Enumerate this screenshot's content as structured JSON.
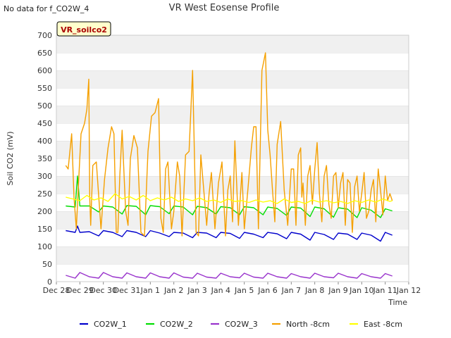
{
  "notice": "No data for f_CO2W_4",
  "chart_data": {
    "type": "line",
    "title": "VR West Eosense Profile",
    "xlabel": "Time",
    "ylabel": "Soil CO2 (mV)",
    "site_label": "VR_soilco2",
    "ylim": [
      0,
      700
    ],
    "yticks": [
      0,
      50,
      100,
      150,
      200,
      250,
      300,
      350,
      400,
      450,
      500,
      550,
      600,
      650,
      700
    ],
    "xlim_days": [
      0,
      15
    ],
    "xticks": [
      "Dec 28",
      "Dec 29",
      "Dec 30",
      "Dec 31",
      "Jan 1",
      "Jan 2",
      "Jan 3",
      "Jan 4",
      "Jan 5",
      "Jan 6",
      "Jan 7",
      "Jan 8",
      "Jan 9",
      "Jan 10",
      "Jan 11",
      "Jan 12"
    ],
    "grid": "horizontal bands",
    "legend_position": "bottom",
    "series": [
      {
        "name": "CO2W_1",
        "color": "#0000cc",
        "x": [
          0.4,
          0.8,
          0.9,
          1.0,
          1.4,
          1.8,
          2.0,
          2.4,
          2.8,
          3.0,
          3.4,
          3.8,
          4.0,
          4.4,
          4.8,
          5.0,
          5.4,
          5.8,
          6.0,
          6.4,
          6.8,
          7.0,
          7.4,
          7.8,
          8.0,
          8.4,
          8.8,
          9.0,
          9.4,
          9.8,
          10.0,
          10.4,
          10.8,
          11.0,
          11.4,
          11.8,
          12.0,
          12.4,
          12.8,
          13.0,
          13.4,
          13.8,
          14.0,
          14.3
        ],
        "y": [
          145,
          140,
          158,
          140,
          142,
          130,
          145,
          140,
          128,
          145,
          140,
          128,
          145,
          138,
          128,
          140,
          138,
          125,
          140,
          138,
          125,
          140,
          137,
          123,
          140,
          135,
          125,
          140,
          136,
          122,
          140,
          135,
          118,
          140,
          134,
          120,
          138,
          135,
          120,
          138,
          132,
          115,
          140,
          132
        ]
      },
      {
        "name": "CO2W_2",
        "color": "#00dd00",
        "x": [
          0.4,
          0.8,
          0.9,
          1.0,
          1.4,
          1.8,
          2.0,
          2.4,
          2.8,
          3.0,
          3.4,
          3.8,
          4.0,
          4.4,
          4.8,
          5.0,
          5.4,
          5.8,
          6.0,
          6.4,
          6.8,
          7.0,
          7.4,
          7.8,
          8.0,
          8.4,
          8.8,
          9.0,
          9.4,
          9.8,
          10.0,
          10.4,
          10.8,
          11.0,
          11.4,
          11.8,
          12.0,
          12.4,
          12.8,
          13.0,
          13.4,
          13.8,
          14.0,
          14.3
        ],
        "y": [
          215,
          212,
          300,
          215,
          215,
          198,
          215,
          212,
          192,
          216,
          214,
          190,
          216,
          213,
          193,
          215,
          212,
          190,
          214,
          210,
          192,
          213,
          210,
          190,
          213,
          210,
          190,
          212,
          208,
          188,
          212,
          209,
          185,
          212,
          207,
          183,
          210,
          206,
          182,
          210,
          203,
          182,
          207,
          201
        ]
      },
      {
        "name": "CO2W_3",
        "color": "#9933cc",
        "x": [
          0.4,
          0.8,
          1.0,
          1.4,
          1.8,
          2.0,
          2.4,
          2.8,
          3.0,
          3.4,
          3.8,
          4.0,
          4.4,
          4.8,
          5.0,
          5.4,
          5.8,
          6.0,
          6.4,
          6.8,
          7.0,
          7.4,
          7.8,
          8.0,
          8.4,
          8.8,
          9.0,
          9.4,
          9.8,
          10.0,
          10.4,
          10.8,
          11.0,
          11.4,
          11.8,
          12.0,
          12.4,
          12.8,
          13.0,
          13.4,
          13.8,
          14.0,
          14.3
        ],
        "y": [
          18,
          10,
          26,
          14,
          10,
          26,
          14,
          10,
          25,
          14,
          10,
          25,
          14,
          10,
          25,
          13,
          10,
          24,
          13,
          10,
          24,
          14,
          11,
          24,
          13,
          10,
          24,
          14,
          10,
          23,
          14,
          10,
          24,
          14,
          11,
          24,
          14,
          10,
          23,
          14,
          10,
          23,
          16
        ]
      },
      {
        "name": "North -8cm",
        "color": "#f5a000",
        "x": [
          0.4,
          0.5,
          0.65,
          0.75,
          0.85,
          0.95,
          1.05,
          1.2,
          1.3,
          1.38,
          1.42,
          1.46,
          1.55,
          1.7,
          1.9,
          2.05,
          2.2,
          2.35,
          2.45,
          2.55,
          2.62,
          2.7,
          2.8,
          2.95,
          3.05,
          3.15,
          3.3,
          3.45,
          3.6,
          3.75,
          3.9,
          4.05,
          4.2,
          4.35,
          4.45,
          4.55,
          4.65,
          4.75,
          4.9,
          5.0,
          5.15,
          5.25,
          5.35,
          5.5,
          5.65,
          5.8,
          5.95,
          6.05,
          6.15,
          6.3,
          6.4,
          6.5,
          6.6,
          6.75,
          6.9,
          7.05,
          7.2,
          7.3,
          7.4,
          7.5,
          7.6,
          7.75,
          7.9,
          8.0,
          8.15,
          8.3,
          8.4,
          8.5,
          8.6,
          8.75,
          8.9,
          9.0,
          9.1,
          9.2,
          9.3,
          9.4,
          9.55,
          9.7,
          9.85,
          10.0,
          10.1,
          10.2,
          10.3,
          10.4,
          10.45,
          10.5,
          10.6,
          10.7,
          10.8,
          10.9,
          11.0,
          11.1,
          11.2,
          11.3,
          11.4,
          11.5,
          11.6,
          11.7,
          11.8,
          11.9,
          12.0,
          12.1,
          12.2,
          12.3,
          12.4,
          12.5,
          12.6,
          12.7,
          12.8,
          12.9,
          13.0,
          13.1,
          13.2,
          13.3,
          13.4,
          13.5,
          13.6,
          13.7,
          13.8,
          13.9,
          14.0,
          14.1,
          14.2,
          14.3
        ],
        "y": [
          330,
          320,
          420,
          240,
          150,
          290,
          420,
          450,
          490,
          575,
          240,
          160,
          330,
          340,
          150,
          290,
          380,
          440,
          420,
          140,
          140,
          300,
          430,
          200,
          160,
          350,
          415,
          380,
          140,
          130,
          370,
          470,
          480,
          520,
          180,
          140,
          320,
          340,
          150,
          200,
          340,
          300,
          130,
          360,
          370,
          600,
          140,
          130,
          360,
          240,
          160,
          250,
          310,
          150,
          280,
          340,
          130,
          260,
          300,
          170,
          400,
          160,
          310,
          150,
          260,
          380,
          440,
          440,
          150,
          600,
          650,
          430,
          360,
          260,
          170,
          390,
          455,
          260,
          160,
          320,
          320,
          160,
          360,
          380,
          240,
          280,
          160,
          300,
          330,
          220,
          320,
          395,
          250,
          170,
          300,
          330,
          220,
          180,
          300,
          310,
          210,
          280,
          310,
          160,
          290,
          280,
          140,
          270,
          300,
          200,
          250,
          310,
          180,
          200,
          260,
          290,
          170,
          320,
          260,
          190,
          300,
          230,
          250,
          230
        ]
      },
      {
        "name": "East -8cm",
        "color": "#ffff00",
        "x": [
          0.4,
          0.7,
          1.0,
          1.3,
          1.6,
          1.9,
          2.2,
          2.5,
          2.8,
          3.1,
          3.4,
          3.7,
          4.0,
          4.3,
          4.6,
          4.9,
          5.2,
          5.5,
          5.8,
          6.1,
          6.4,
          6.7,
          7.0,
          7.3,
          7.6,
          7.9,
          8.2,
          8.5,
          8.8,
          9.1,
          9.4,
          9.7,
          10.0,
          10.3,
          10.6,
          10.9,
          11.2,
          11.5,
          11.8,
          12.1,
          12.4,
          12.7,
          13.0,
          13.3,
          13.6,
          13.9,
          14.2,
          14.3
        ],
        "y": [
          240,
          235,
          230,
          245,
          232,
          238,
          228,
          250,
          235,
          242,
          232,
          245,
          230,
          238,
          232,
          240,
          228,
          235,
          230,
          238,
          228,
          232,
          225,
          235,
          228,
          230,
          225,
          232,
          226,
          230,
          222,
          235,
          225,
          228,
          222,
          232,
          226,
          230,
          224,
          228,
          222,
          230,
          225,
          232,
          226,
          235,
          228,
          230
        ]
      }
    ]
  }
}
